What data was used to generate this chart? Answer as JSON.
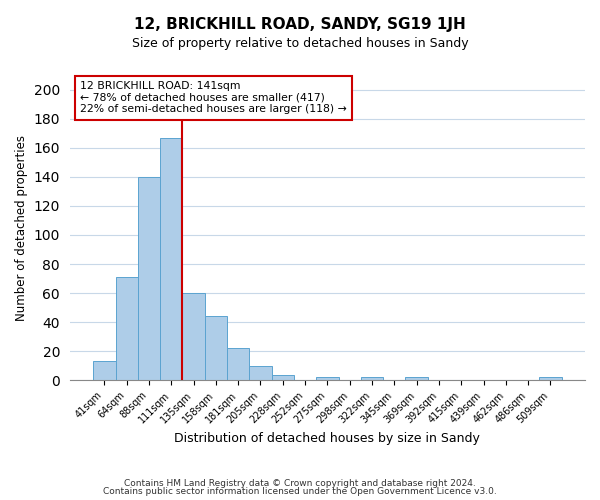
{
  "title": "12, BRICKHILL ROAD, SANDY, SG19 1JH",
  "subtitle": "Size of property relative to detached houses in Sandy",
  "xlabel": "Distribution of detached houses by size in Sandy",
  "ylabel": "Number of detached properties",
  "bar_color": "#aecde8",
  "bar_edge_color": "#5ba3d0",
  "categories": [
    "41sqm",
    "64sqm",
    "88sqm",
    "111sqm",
    "135sqm",
    "158sqm",
    "181sqm",
    "205sqm",
    "228sqm",
    "252sqm",
    "275sqm",
    "298sqm",
    "322sqm",
    "345sqm",
    "369sqm",
    "392sqm",
    "415sqm",
    "439sqm",
    "462sqm",
    "486sqm",
    "509sqm"
  ],
  "values": [
    13,
    71,
    140,
    167,
    60,
    44,
    22,
    10,
    4,
    0,
    2,
    0,
    2,
    0,
    2,
    0,
    0,
    0,
    0,
    0,
    2
  ],
  "property_line_color": "#cc0000",
  "annotation_title": "12 BRICKHILL ROAD: 141sqm",
  "annotation_line1": "← 78% of detached houses are smaller (417)",
  "annotation_line2": "22% of semi-detached houses are larger (118) →",
  "annotation_box_color": "#ffffff",
  "annotation_box_edge": "#cc0000",
  "ylim": [
    0,
    210
  ],
  "yticks": [
    0,
    20,
    40,
    60,
    80,
    100,
    120,
    140,
    160,
    180,
    200
  ],
  "footer1": "Contains HM Land Registry data © Crown copyright and database right 2024.",
  "footer2": "Contains public sector information licensed under the Open Government Licence v3.0.",
  "bg_color": "#ffffff",
  "grid_color": "#c8d8e8"
}
